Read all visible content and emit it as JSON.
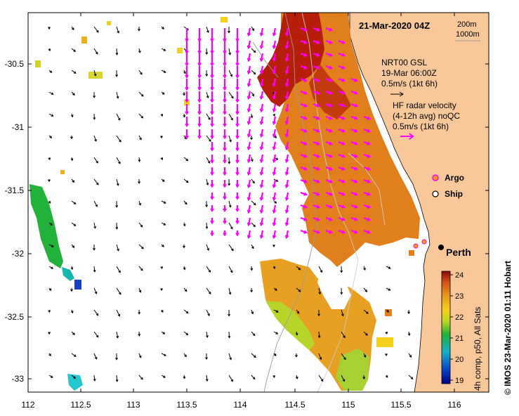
{
  "map": {
    "title": "21-Mar-2020 04Z",
    "depth_contours": [
      "200m",
      "1000m"
    ],
    "lon_ticks": [
      "112",
      "112.5",
      "113",
      "113.5",
      "114",
      "114.5",
      "115",
      "115.5",
      "116"
    ],
    "lat_ticks": [
      "-30.5",
      "-31",
      "-31.5",
      "-32",
      "-32.5",
      "-33"
    ],
    "lon_range": [
      112,
      116.3
    ],
    "lat_range": [
      -33.1,
      -30.1
    ],
    "city": {
      "name": "Perth",
      "lon": 115.86,
      "lat": -31.95
    }
  },
  "legend": {
    "nrt_title": "NRT00 GSL",
    "nrt_time": "19-Mar 06:00Z",
    "nrt_scale": "0.5m/s (1kt 6h)",
    "hf_title": "HF radar velocity",
    "hf_sub": "(4-12h avg) noQC",
    "hf_scale": "0.5m/s (1kt 6h)",
    "argo_label": "Argo",
    "ship_label": "Ship"
  },
  "colorbar": {
    "label": "4h comp, p50, All Sats",
    "min": 19,
    "max": 24,
    "ticks": [
      "24",
      "23",
      "22",
      "21",
      "20",
      "19"
    ]
  },
  "credit": "© IMOS 23-Mar-2020 01:11 Hobart",
  "colors": {
    "land": "#f8c89a",
    "argo": "#ff00ff",
    "hf_arrows": "#ff00ff",
    "model_arrows": "#000000"
  }
}
